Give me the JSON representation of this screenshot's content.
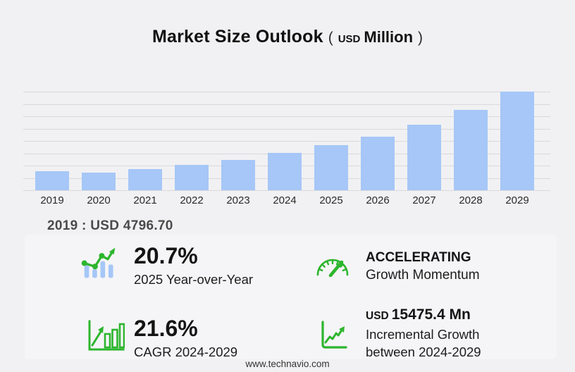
{
  "title": {
    "main": "Market Size Outlook",
    "paren_open": "(",
    "currency": "USD",
    "unit": "Million",
    "paren_close": ")"
  },
  "chart_data": {
    "type": "bar",
    "title": "Market Size Outlook (USD Million)",
    "ylabel": "USD Million",
    "categories": [
      "2019",
      "2020",
      "2021",
      "2022",
      "2023",
      "2024",
      "2025",
      "2026",
      "2027",
      "2028",
      "2029"
    ],
    "values": [
      4796.7,
      4450,
      5320,
      6360,
      7600,
      9333,
      11265,
      13500,
      16400,
      20200,
      24808
    ],
    "labeled_values": {
      "2019": 4796.7
    },
    "annotation": "2019 : USD  4796.70",
    "ylim": [
      0,
      24808
    ],
    "grid": true,
    "gridline_count": 9,
    "legend": "none",
    "bar_color": "#a6c7f7"
  },
  "stats": {
    "yoy": {
      "icon": "bar-chart-trend-icon",
      "value": "20.7%",
      "label": "2025 Year-over-Year"
    },
    "momentum": {
      "icon": "speedometer-icon",
      "value": "ACCELERATING",
      "label": "Growth Momentum"
    },
    "cagr": {
      "icon": "growth-bars-arrow-icon",
      "value": "21.6%",
      "label": "CAGR 2024-2029"
    },
    "incremental": {
      "icon": "line-growth-axes-icon",
      "currency": "USD",
      "value": "15475.4 Mn",
      "label_line1": "Incremental Growth",
      "label_line2": "between 2024-2029"
    }
  },
  "footer": {
    "url": "www.technavio.com"
  },
  "colors": {
    "background": "#f1f1f3",
    "panel": "#f5f5f7",
    "bar_blue": "#a6c7f7",
    "gridline": "#d9d9dc",
    "green": "#2db52d",
    "note_text": "#4a4a4a"
  }
}
